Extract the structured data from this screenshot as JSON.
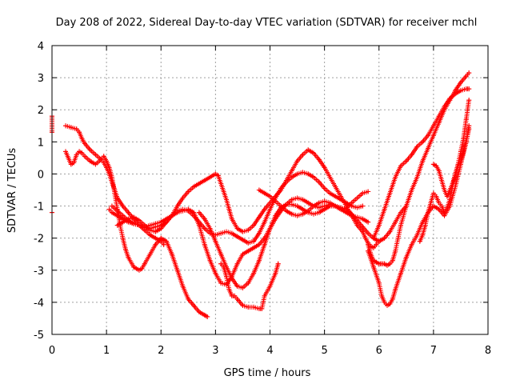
{
  "chart_data": {
    "type": "scatter",
    "title": "Day 208 of 2022, Sidereal Day-to-day VTEC variation (SDTVAR) for receiver mchl",
    "xlabel": "GPS time / hours",
    "ylabel": "SDTVAR / TECUs",
    "xlim": [
      0,
      8
    ],
    "ylim": [
      -5,
      4
    ],
    "xticks": [
      "0",
      "1",
      "2",
      "3",
      "4",
      "5",
      "6",
      "7",
      "8"
    ],
    "yticks": [
      "-5",
      "-4",
      "-3",
      "-2",
      "-1",
      "0",
      "1",
      "2",
      "3",
      "4"
    ],
    "grid": true,
    "marker": "+",
    "color": "#ff0000",
    "series": [
      {
        "x": [
          0.0,
          0.0
        ],
        "y": [
          1.8,
          1.3
        ]
      },
      {
        "x": [
          0.0
        ],
        "y": [
          -1.2
        ]
      },
      {
        "x": [
          0.25,
          0.35,
          0.45,
          0.5,
          0.55,
          0.6,
          0.7,
          0.8,
          0.9,
          0.95,
          1.0,
          1.05,
          1.1,
          1.15,
          1.2,
          1.3,
          1.4,
          1.5,
          1.6,
          1.7,
          1.8,
          1.9,
          2.0,
          2.05
        ],
        "y": [
          1.5,
          1.45,
          1.4,
          1.3,
          1.1,
          0.95,
          0.75,
          0.6,
          0.45,
          0.35,
          0.2,
          0.0,
          -0.25,
          -0.5,
          -0.75,
          -1.0,
          -1.2,
          -1.4,
          -1.6,
          -1.75,
          -1.9,
          -2.0,
          -2.1,
          -2.2
        ]
      },
      {
        "x": [
          0.25,
          0.3,
          0.35,
          0.4,
          0.45,
          0.5,
          0.55,
          0.6,
          0.7,
          0.8,
          0.9,
          0.95,
          1.0,
          1.05,
          1.1,
          1.15,
          1.2,
          1.25,
          1.3,
          1.35,
          1.4,
          1.5,
          1.6,
          1.65,
          1.7,
          1.8,
          1.9,
          2.0,
          2.1,
          2.2,
          2.3,
          2.4,
          2.5,
          2.6,
          2.7,
          2.8,
          2.85
        ],
        "y": [
          0.7,
          0.5,
          0.3,
          0.35,
          0.6,
          0.7,
          0.65,
          0.55,
          0.4,
          0.3,
          0.45,
          0.55,
          0.4,
          0.2,
          -0.1,
          -0.6,
          -1.1,
          -1.6,
          -2.0,
          -2.35,
          -2.6,
          -2.9,
          -3.0,
          -2.95,
          -2.8,
          -2.5,
          -2.2,
          -2.0,
          -2.1,
          -2.5,
          -3.0,
          -3.5,
          -3.9,
          -4.1,
          -4.3,
          -4.4,
          -4.45
        ]
      },
      {
        "x": [
          1.05,
          1.1,
          1.2,
          1.3,
          1.4,
          1.5,
          1.6,
          1.7,
          1.8,
          1.9,
          2.0,
          2.1,
          2.2,
          2.3,
          2.4,
          2.5,
          2.6,
          2.7,
          2.8,
          2.9,
          3.0,
          3.05,
          3.1,
          3.2,
          3.25,
          3.3,
          3.4,
          3.5,
          3.6,
          3.7,
          3.8,
          3.9,
          4.0,
          4.1,
          4.2,
          4.3,
          4.4,
          4.5,
          4.6,
          4.7,
          4.8,
          4.9,
          5.0,
          5.1,
          5.2,
          5.3,
          5.4,
          5.5,
          5.6,
          5.7,
          5.75,
          5.8,
          5.85,
          5.9,
          5.95,
          6.0
        ],
        "y": [
          -1.1,
          -1.2,
          -1.3,
          -1.4,
          -1.5,
          -1.55,
          -1.6,
          -1.65,
          -1.7,
          -1.65,
          -1.6,
          -1.5,
          -1.3,
          -1.0,
          -0.75,
          -0.55,
          -0.4,
          -0.3,
          -0.2,
          -0.1,
          0.0,
          -0.05,
          -0.3,
          -0.8,
          -1.1,
          -1.4,
          -1.7,
          -1.8,
          -1.75,
          -1.6,
          -1.35,
          -1.1,
          -0.9,
          -0.7,
          -0.5,
          -0.2,
          0.1,
          0.4,
          0.6,
          0.75,
          0.65,
          0.45,
          0.2,
          -0.1,
          -0.4,
          -0.7,
          -1.0,
          -1.3,
          -1.6,
          -1.8,
          -2.0,
          -2.15,
          -2.25,
          -2.3,
          -2.2,
          -2.1
        ]
      },
      {
        "x": [
          1.1,
          1.2,
          1.3,
          1.4,
          1.5,
          1.6,
          1.7,
          1.8,
          1.9,
          2.0,
          2.1,
          2.2,
          2.3,
          2.4,
          2.5,
          2.6,
          2.7,
          2.8,
          2.9,
          3.0,
          3.1,
          3.2,
          3.3,
          3.4,
          3.5,
          3.6,
          3.7,
          3.8,
          3.9,
          4.0,
          4.1,
          4.2,
          4.3,
          4.4,
          4.5,
          4.6,
          4.7,
          4.8,
          4.9,
          5.0,
          5.1,
          5.2,
          5.3,
          5.4,
          5.5,
          5.6,
          5.7,
          5.8
        ],
        "y": [
          -1.0,
          -1.15,
          -1.3,
          -1.45,
          -1.55,
          -1.6,
          -1.65,
          -1.6,
          -1.55,
          -1.5,
          -1.4,
          -1.3,
          -1.2,
          -1.15,
          -1.1,
          -1.2,
          -1.6,
          -2.2,
          -2.7,
          -3.1,
          -3.4,
          -3.45,
          -3.2,
          -2.8,
          -2.5,
          -2.4,
          -2.3,
          -2.2,
          -2.0,
          -1.7,
          -1.4,
          -1.15,
          -0.95,
          -0.8,
          -0.75,
          -0.8,
          -0.9,
          -1.0,
          -1.05,
          -1.0,
          -0.95,
          -1.0,
          -1.1,
          -1.2,
          -1.3,
          -1.35,
          -1.4,
          -1.5
        ]
      },
      {
        "x": [
          1.2,
          1.3,
          1.4,
          1.5,
          1.6,
          1.7,
          1.8,
          1.9,
          2.0,
          2.1,
          2.2,
          2.3,
          2.4,
          2.5,
          2.6,
          2.7,
          2.8,
          2.9,
          3.0,
          3.1,
          3.2,
          3.3,
          3.4,
          3.5,
          3.6,
          3.7,
          3.8,
          3.9,
          4.0,
          4.1,
          4.2,
          4.3,
          4.4,
          4.5,
          4.6,
          4.7,
          4.8,
          4.9,
          5.0,
          5.1,
          5.2,
          5.3,
          5.4,
          5.5,
          5.6,
          5.7
        ],
        "y": [
          -1.6,
          -1.5,
          -1.4,
          -1.35,
          -1.45,
          -1.6,
          -1.75,
          -1.8,
          -1.7,
          -1.5,
          -1.3,
          -1.15,
          -1.1,
          -1.15,
          -1.3,
          -1.5,
          -1.7,
          -1.85,
          -1.9,
          -1.85,
          -1.8,
          -1.85,
          -1.95,
          -2.05,
          -2.15,
          -2.1,
          -1.85,
          -1.5,
          -1.1,
          -0.75,
          -0.45,
          -0.25,
          -0.1,
          0.0,
          0.05,
          0.0,
          -0.1,
          -0.25,
          -0.45,
          -0.6,
          -0.7,
          -0.8,
          -0.9,
          -1.0,
          -1.05,
          -1.0
        ]
      },
      {
        "x": [
          2.7,
          2.8,
          2.9,
          3.0,
          3.1,
          3.2,
          3.3,
          3.4,
          3.5,
          3.6,
          3.7,
          3.8,
          3.9,
          4.0,
          4.1,
          4.2,
          4.3,
          4.4,
          4.5,
          4.6,
          4.7,
          4.8,
          4.9,
          5.0,
          5.1,
          5.2,
          5.3,
          5.4,
          5.5,
          5.6,
          5.7,
          5.8,
          5.9,
          6.0,
          6.1,
          6.2,
          6.3,
          6.4,
          6.5
        ],
        "y": [
          -1.2,
          -1.4,
          -1.7,
          -2.1,
          -2.5,
          -2.9,
          -3.25,
          -3.5,
          -3.55,
          -3.4,
          -3.1,
          -2.7,
          -2.2,
          -1.7,
          -1.3,
          -1.05,
          -0.95,
          -0.95,
          -1.0,
          -1.1,
          -1.2,
          -1.25,
          -1.2,
          -1.1,
          -1.0,
          -1.0,
          -1.05,
          -1.1,
          -1.25,
          -1.45,
          -1.65,
          -1.85,
          -2.0,
          -2.1,
          -2.0,
          -1.8,
          -1.5,
          -1.2,
          -1.0
        ]
      },
      {
        "x": [
          3.1,
          3.15,
          3.2,
          3.25,
          3.3,
          3.35,
          3.4,
          3.5,
          3.6,
          3.7,
          3.8,
          3.85,
          3.9,
          4.0,
          4.1,
          4.15
        ],
        "y": [
          -2.8,
          -2.9,
          -3.2,
          -3.6,
          -3.8,
          -3.8,
          -3.9,
          -4.1,
          -4.15,
          -4.15,
          -4.2,
          -4.2,
          -3.8,
          -3.5,
          -3.1,
          -2.8
        ]
      },
      {
        "x": [
          3.8,
          3.9,
          4.0,
          4.1,
          4.2,
          4.3,
          4.4,
          4.5,
          4.6,
          4.7,
          4.8,
          4.9,
          5.0,
          5.1,
          5.2,
          5.3,
          5.4,
          5.5,
          5.6,
          5.7,
          5.8
        ],
        "y": [
          -0.5,
          -0.6,
          -0.7,
          -0.85,
          -1.0,
          -1.15,
          -1.25,
          -1.3,
          -1.25,
          -1.15,
          -1.0,
          -0.9,
          -0.85,
          -0.9,
          -1.0,
          -1.1,
          -1.05,
          -0.9,
          -0.75,
          -0.6,
          -0.55
        ]
      },
      {
        "x": [
          5.8,
          5.85,
          5.9,
          5.95,
          6.0,
          6.05,
          6.1,
          6.15,
          6.2,
          6.25,
          6.3,
          6.35,
          6.4,
          6.5,
          6.6,
          6.7,
          6.8,
          6.9,
          7.0,
          7.1,
          7.2,
          7.3,
          7.4,
          7.5,
          7.6,
          7.65
        ],
        "y": [
          -2.2,
          -2.5,
          -2.7,
          -2.75,
          -2.8,
          -2.8,
          -2.8,
          -2.85,
          -2.8,
          -2.7,
          -2.4,
          -2.0,
          -1.6,
          -1.0,
          -0.5,
          -0.1,
          0.4,
          0.8,
          1.2,
          1.6,
          2.0,
          2.3,
          2.6,
          2.85,
          3.05,
          3.15
        ]
      },
      {
        "x": [
          5.8,
          5.9,
          6.0,
          6.05,
          6.1,
          6.15,
          6.2,
          6.25,
          6.3,
          6.4,
          6.5,
          6.6,
          6.7,
          6.8,
          6.9,
          7.0,
          7.1,
          7.2,
          7.3,
          7.4,
          7.5,
          7.6,
          7.65
        ],
        "y": [
          -2.4,
          -2.9,
          -3.4,
          -3.8,
          -4.0,
          -4.1,
          -4.05,
          -3.9,
          -3.6,
          -3.1,
          -2.6,
          -2.2,
          -1.9,
          -1.5,
          -1.2,
          -1.0,
          -1.1,
          -1.3,
          -1.0,
          -0.4,
          0.3,
          1.0,
          1.4
        ]
      },
      {
        "x": [
          5.9,
          6.0,
          6.1,
          6.2,
          6.3,
          6.4,
          6.5,
          6.6,
          6.7,
          6.8,
          6.9,
          7.0,
          7.1,
          7.2,
          7.3,
          7.4,
          7.5,
          7.6,
          7.65
        ],
        "y": [
          -2.0,
          -1.6,
          -1.1,
          -0.6,
          -0.1,
          0.25,
          0.4,
          0.6,
          0.85,
          1.0,
          1.2,
          1.5,
          1.8,
          2.1,
          2.35,
          2.5,
          2.6,
          2.65,
          2.65
        ]
      },
      {
        "x": [
          6.75,
          6.8,
          6.85,
          6.9,
          6.95,
          7.0,
          7.05,
          7.1,
          7.15,
          7.2,
          7.25,
          7.3,
          7.35,
          7.4,
          7.45,
          7.5,
          7.55,
          7.6,
          7.65
        ],
        "y": [
          -2.1,
          -1.9,
          -1.6,
          -1.2,
          -0.9,
          -0.6,
          -0.7,
          -0.9,
          -1.0,
          -1.2,
          -1.05,
          -0.8,
          -0.4,
          0.0,
          0.3,
          0.7,
          1.1,
          1.7,
          2.3
        ]
      },
      {
        "x": [
          7.0,
          7.05,
          7.1,
          7.15,
          7.2,
          7.25,
          7.3,
          7.35,
          7.4,
          7.45,
          7.5,
          7.55,
          7.6,
          7.65
        ],
        "y": [
          0.3,
          0.25,
          0.1,
          -0.2,
          -0.5,
          -0.7,
          -0.5,
          -0.3,
          0.0,
          0.25,
          0.4,
          0.7,
          1.0,
          1.5
        ]
      }
    ]
  }
}
